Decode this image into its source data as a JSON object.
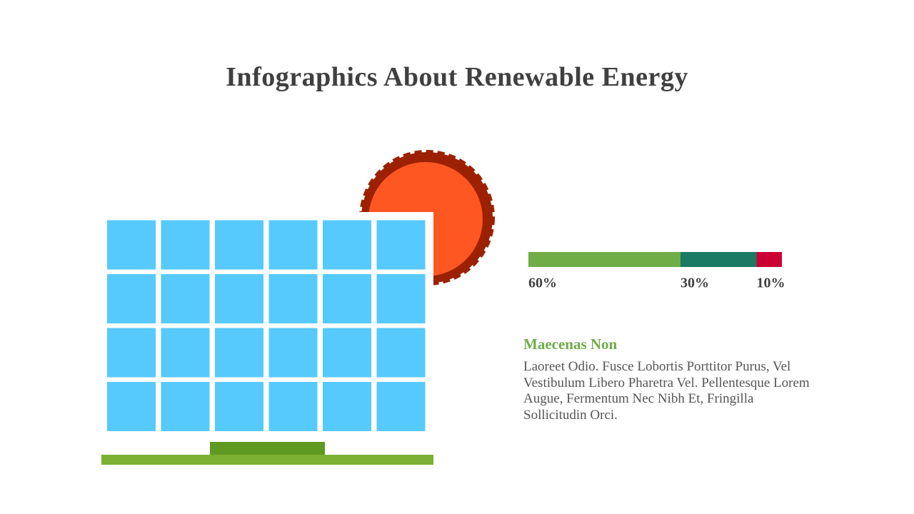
{
  "title": "Infographics About Renewable Energy",
  "chart_data": {
    "type": "stacked-bar",
    "xlim": [
      0,
      100
    ],
    "series": [
      {
        "color": "#70ad47",
        "values": [
          60
        ],
        "value_labels": [
          "60%"
        ]
      },
      {
        "color": "#1a7a63",
        "values": [
          30
        ],
        "value_labels": [
          "30%"
        ]
      },
      {
        "color": "#cc0033",
        "values": [
          10
        ],
        "value_labels": [
          "10%"
        ]
      }
    ]
  },
  "text": {
    "heading": "Maecenas Non",
    "body": "Laoreet Odio. Fusce Lobortis Porttitor Purus, Vel Vestibulum Libero Pharetra Vel. Pellentesque Lorem Augue, Fermentum Nec Nibh Et, Fringilla Sollicitudin Orci."
  }
}
